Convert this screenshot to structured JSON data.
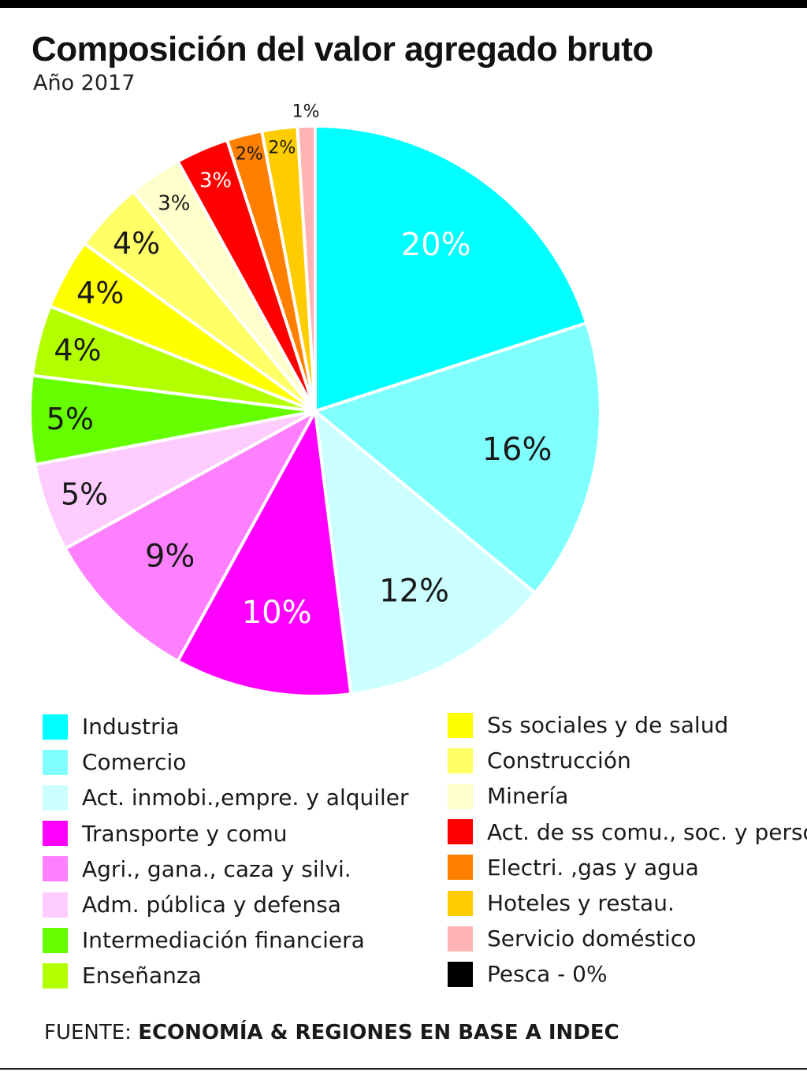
{
  "title": "Composición del valor agregado bruto",
  "subtitle": "Año 2017",
  "source": {
    "prefix": "FUENTE: ",
    "text": "ECONOMÍA & REGIONES EN BASE A INDEC"
  },
  "chart_data": {
    "type": "pie",
    "slices": [
      {
        "name": "Industria",
        "value": 20,
        "label": "20%",
        "color": "#00FFFF",
        "label_color": "#ffffff"
      },
      {
        "name": "Comercio",
        "value": 16,
        "label": "16%",
        "color": "#80FFFF",
        "label_color": "#1a1a1a"
      },
      {
        "name": "Act. inmobi.,empre. y alquiler",
        "value": 12,
        "label": "12%",
        "color": "#CCFFFF",
        "label_color": "#1a1a1a"
      },
      {
        "name": "Transporte y comu",
        "value": 10,
        "label": "10%",
        "color": "#FF00FF",
        "label_color": "#ffffff"
      },
      {
        "name": "Agri., gana., caza y silvi.",
        "value": 9,
        "label": "9%",
        "color": "#FF80FF",
        "label_color": "#1a1a1a"
      },
      {
        "name": "Adm. pública y defensa",
        "value": 5,
        "label": "5%",
        "color": "#FFCCFF",
        "label_color": "#1a1a1a"
      },
      {
        "name": "Intermediación financiera",
        "value": 5,
        "label": "5%",
        "color": "#66FF00",
        "label_color": "#1a1a1a"
      },
      {
        "name": "Enseñanza",
        "value": 4,
        "label": "4%",
        "color": "#B3FF00",
        "label_color": "#1a1a1a"
      },
      {
        "name": "Ss sociales y de salud",
        "value": 4,
        "label": "4%",
        "color": "#FFFF00",
        "label_color": "#1a1a1a"
      },
      {
        "name": "Construcción",
        "value": 4,
        "label": "4%",
        "color": "#FFFF66",
        "label_color": "#1a1a1a"
      },
      {
        "name": "Minería",
        "value": 3,
        "label": "3%",
        "color": "#FFFFCC",
        "label_color": "#1a1a1a"
      },
      {
        "name": "Act. de ss comu., soc. y personales",
        "value": 3,
        "label": "3%",
        "color": "#FF0000",
        "label_color": "#ffffff"
      },
      {
        "name": "Electri. ,gas y agua",
        "value": 2,
        "label": "2%",
        "color": "#FF8000",
        "label_color": "#1a1a1a"
      },
      {
        "name": "Hoteles y restau.",
        "value": 2,
        "label": "2%",
        "color": "#FFCC00",
        "label_color": "#1a1a1a"
      },
      {
        "name": "Servicio doméstico",
        "value": 1,
        "label": "1%",
        "color": "#FFB3B3",
        "label_color": "#1a1a1a"
      },
      {
        "name": "Pesca - 0%",
        "value": 0,
        "label": "",
        "color": "#000000",
        "label_color": "#1a1a1a"
      }
    ]
  }
}
